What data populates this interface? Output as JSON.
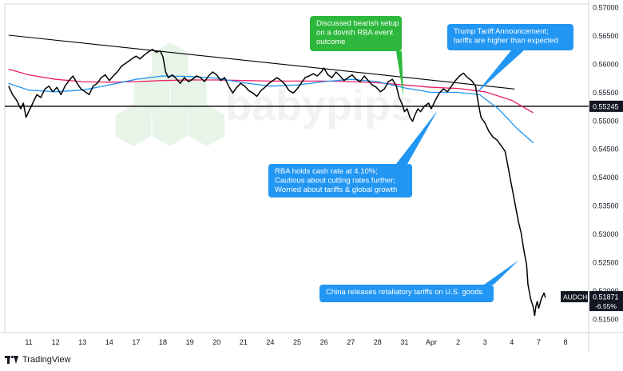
{
  "chart_data": {
    "type": "line",
    "instrument": "AUDCHF",
    "price_label": "0.51871",
    "change_label": "-6.55%",
    "level_label": "0.55245",
    "level_value": 0.55245,
    "ylim": [
      0.5125,
      0.5705
    ],
    "y_ticks": [
      "0.57000",
      "0.56500",
      "0.56000",
      "0.55500",
      "0.55000",
      "0.54500",
      "0.54000",
      "0.53500",
      "0.53000",
      "0.52500",
      "0.52000",
      "0.51500"
    ],
    "y_tick_values": [
      0.57,
      0.565,
      0.56,
      0.555,
      0.55,
      0.545,
      0.54,
      0.535,
      0.53,
      0.525,
      0.52,
      0.515
    ],
    "x_ticks": [
      "11",
      "12",
      "13",
      "14",
      "17",
      "18",
      "19",
      "20",
      "21",
      "24",
      "25",
      "26",
      "27",
      "28",
      "31",
      "Apr",
      "2",
      "3",
      "4",
      "7",
      "8"
    ],
    "x_tick_index": [
      0,
      1,
      2,
      3,
      4,
      5,
      6,
      7,
      8,
      9,
      10,
      11,
      12,
      13,
      14,
      15,
      16,
      17,
      18,
      19,
      20
    ],
    "watermark": "babypips",
    "colors": {
      "price": "#000000",
      "ma_fast": "#2196f3",
      "ma_slow": "#e91e63",
      "callout_green": "#2db83d",
      "callout_blue": "#2196f3",
      "level_badge": "#131722"
    },
    "price": [
      [
        -0.75,
        0.556
      ],
      [
        -0.6,
        0.5545
      ],
      [
        -0.45,
        0.5535
      ],
      [
        -0.3,
        0.552
      ],
      [
        -0.2,
        0.553
      ],
      [
        -0.1,
        0.5505
      ],
      [
        0.0,
        0.5515
      ],
      [
        0.15,
        0.553
      ],
      [
        0.3,
        0.5545
      ],
      [
        0.45,
        0.554
      ],
      [
        0.6,
        0.5555
      ],
      [
        0.75,
        0.556
      ],
      [
        0.9,
        0.555
      ],
      [
        1.05,
        0.5558
      ],
      [
        1.2,
        0.5545
      ],
      [
        1.35,
        0.556
      ],
      [
        1.5,
        0.557
      ],
      [
        1.65,
        0.5578
      ],
      [
        1.8,
        0.5565
      ],
      [
        1.95,
        0.5555
      ],
      [
        2.1,
        0.555
      ],
      [
        2.25,
        0.5545
      ],
      [
        2.4,
        0.556
      ],
      [
        2.55,
        0.5565
      ],
      [
        2.7,
        0.5575
      ],
      [
        2.85,
        0.558
      ],
      [
        3.0,
        0.557
      ],
      [
        3.15,
        0.5578
      ],
      [
        3.3,
        0.5585
      ],
      [
        3.45,
        0.5595
      ],
      [
        3.6,
        0.56
      ],
      [
        3.75,
        0.5605
      ],
      [
        3.9,
        0.561
      ],
      [
        4.0,
        0.5613
      ],
      [
        4.15,
        0.5608
      ],
      [
        4.3,
        0.5615
      ],
      [
        4.45,
        0.562
      ],
      [
        4.6,
        0.5625
      ],
      [
        4.75,
        0.562
      ],
      [
        4.9,
        0.5622
      ],
      [
        5.0,
        0.5612
      ],
      [
        5.1,
        0.5585
      ],
      [
        5.2,
        0.5575
      ],
      [
        5.35,
        0.558
      ],
      [
        5.5,
        0.5573
      ],
      [
        5.65,
        0.5565
      ],
      [
        5.8,
        0.5575
      ],
      [
        5.95,
        0.5568
      ],
      [
        6.1,
        0.5572
      ],
      [
        6.25,
        0.5578
      ],
      [
        6.4,
        0.5575
      ],
      [
        6.55,
        0.5568
      ],
      [
        6.7,
        0.5578
      ],
      [
        6.85,
        0.5585
      ],
      [
        7.0,
        0.558
      ],
      [
        7.15,
        0.557
      ],
      [
        7.3,
        0.5575
      ],
      [
        7.45,
        0.556
      ],
      [
        7.6,
        0.5548
      ],
      [
        7.75,
        0.5558
      ],
      [
        7.9,
        0.5565
      ],
      [
        8.05,
        0.556
      ],
      [
        8.2,
        0.5552
      ],
      [
        8.35,
        0.5548
      ],
      [
        8.5,
        0.5542
      ],
      [
        8.65,
        0.5552
      ],
      [
        8.8,
        0.5558
      ],
      [
        8.95,
        0.5565
      ],
      [
        9.1,
        0.557
      ],
      [
        9.25,
        0.5575
      ],
      [
        9.4,
        0.557
      ],
      [
        9.55,
        0.5563
      ],
      [
        9.7,
        0.5552
      ],
      [
        9.85,
        0.5548
      ],
      [
        10.0,
        0.5555
      ],
      [
        10.15,
        0.5565
      ],
      [
        10.3,
        0.5575
      ],
      [
        10.45,
        0.5578
      ],
      [
        10.6,
        0.5582
      ],
      [
        10.75,
        0.5578
      ],
      [
        10.9,
        0.5585
      ],
      [
        11.0,
        0.5592
      ],
      [
        11.15,
        0.558
      ],
      [
        11.3,
        0.5575
      ],
      [
        11.45,
        0.5585
      ],
      [
        11.6,
        0.5578
      ],
      [
        11.75,
        0.557
      ],
      [
        11.9,
        0.5575
      ],
      [
        12.05,
        0.558
      ],
      [
        12.2,
        0.5572
      ],
      [
        12.35,
        0.5568
      ],
      [
        12.5,
        0.5578
      ],
      [
        12.65,
        0.557
      ],
      [
        12.8,
        0.5562
      ],
      [
        12.95,
        0.5558
      ],
      [
        13.1,
        0.555
      ],
      [
        13.25,
        0.5555
      ],
      [
        13.4,
        0.5568
      ],
      [
        13.55,
        0.5572
      ],
      [
        13.7,
        0.556
      ],
      [
        13.8,
        0.554
      ],
      [
        13.9,
        0.553
      ],
      [
        14.0,
        0.5515
      ],
      [
        14.1,
        0.552
      ],
      [
        14.2,
        0.5505
      ],
      [
        14.3,
        0.5498
      ],
      [
        14.4,
        0.551
      ],
      [
        14.5,
        0.552
      ],
      [
        14.6,
        0.5515
      ],
      [
        14.75,
        0.5525
      ],
      [
        14.9,
        0.553
      ],
      [
        15.0,
        0.552
      ],
      [
        15.15,
        0.5535
      ],
      [
        15.3,
        0.5548
      ],
      [
        15.45,
        0.5555
      ],
      [
        15.6,
        0.555
      ],
      [
        15.75,
        0.556
      ],
      [
        15.9,
        0.557
      ],
      [
        16.05,
        0.5578
      ],
      [
        16.2,
        0.5583
      ],
      [
        16.35,
        0.5575
      ],
      [
        16.5,
        0.557
      ],
      [
        16.65,
        0.556
      ],
      [
        16.75,
        0.553
      ],
      [
        16.85,
        0.5505
      ],
      [
        17.0,
        0.5495
      ],
      [
        17.15,
        0.548
      ],
      [
        17.3,
        0.547
      ],
      [
        17.45,
        0.5465
      ],
      [
        17.6,
        0.5455
      ],
      [
        17.75,
        0.5445
      ],
      [
        17.85,
        0.542
      ],
      [
        17.95,
        0.5395
      ],
      [
        18.05,
        0.537
      ],
      [
        18.15,
        0.5345
      ],
      [
        18.25,
        0.532
      ],
      [
        18.35,
        0.53
      ],
      [
        18.45,
        0.527
      ],
      [
        18.55,
        0.5245
      ],
      [
        18.6,
        0.521
      ],
      [
        18.7,
        0.5185
      ],
      [
        18.8,
        0.517
      ],
      [
        18.85,
        0.5155
      ],
      [
        18.9,
        0.5172
      ],
      [
        18.95,
        0.518
      ],
      [
        19.0,
        0.5168
      ],
      [
        19.1,
        0.5185
      ],
      [
        19.2,
        0.5195
      ],
      [
        19.25,
        0.5187
      ]
    ],
    "ma_fast": [
      [
        -0.75,
        0.5565
      ],
      [
        0.0,
        0.5553
      ],
      [
        1.0,
        0.555
      ],
      [
        2.0,
        0.5553
      ],
      [
        3.0,
        0.5562
      ],
      [
        4.0,
        0.5572
      ],
      [
        5.0,
        0.5578
      ],
      [
        6.0,
        0.5577
      ],
      [
        7.0,
        0.5574
      ],
      [
        8.0,
        0.5566
      ],
      [
        9.0,
        0.556
      ],
      [
        10.0,
        0.5562
      ],
      [
        11.0,
        0.5568
      ],
      [
        12.0,
        0.5572
      ],
      [
        13.0,
        0.5568
      ],
      [
        14.0,
        0.5557
      ],
      [
        15.0,
        0.5549
      ],
      [
        16.0,
        0.5549
      ],
      [
        16.8,
        0.5545
      ],
      [
        17.5,
        0.552
      ],
      [
        18.2,
        0.5485
      ],
      [
        18.8,
        0.546
      ]
    ],
    "ma_slow": [
      [
        -0.75,
        0.559
      ],
      [
        0.0,
        0.558
      ],
      [
        1.0,
        0.5572
      ],
      [
        2.0,
        0.5568
      ],
      [
        3.0,
        0.5567
      ],
      [
        4.0,
        0.5568
      ],
      [
        5.0,
        0.557
      ],
      [
        6.0,
        0.5571
      ],
      [
        7.0,
        0.5571
      ],
      [
        8.0,
        0.557
      ],
      [
        9.0,
        0.5569
      ],
      [
        10.0,
        0.5569
      ],
      [
        11.0,
        0.5569
      ],
      [
        12.0,
        0.5568
      ],
      [
        13.0,
        0.5566
      ],
      [
        14.0,
        0.5562
      ],
      [
        15.0,
        0.5558
      ],
      [
        16.0,
        0.5556
      ],
      [
        17.0,
        0.555
      ],
      [
        18.0,
        0.5535
      ],
      [
        18.8,
        0.5513
      ]
    ],
    "trendline": [
      [
        -0.75,
        0.565
      ],
      [
        18.1,
        0.5555
      ]
    ],
    "annotations": [
      {
        "id": "rba-event",
        "lines": [
          "Discussed bearish setup",
          "on a dovish RBA event",
          "outcome"
        ],
        "color": "green"
      },
      {
        "id": "tariff",
        "lines": [
          "Trump Tariff Announcement;",
          "tariffs are higher than expected"
        ],
        "color": "blue"
      },
      {
        "id": "rba-hold",
        "lines": [
          "RBA holds cash rate at 4.10%;",
          "Cautious about cutting rates further;",
          "Worried about tariffs & global growth"
        ],
        "color": "blue"
      },
      {
        "id": "china",
        "lines": [
          "China releases retaliatory tariffs on U.S. goods"
        ],
        "color": "blue"
      }
    ]
  },
  "footer": {
    "brand": "TradingView"
  }
}
